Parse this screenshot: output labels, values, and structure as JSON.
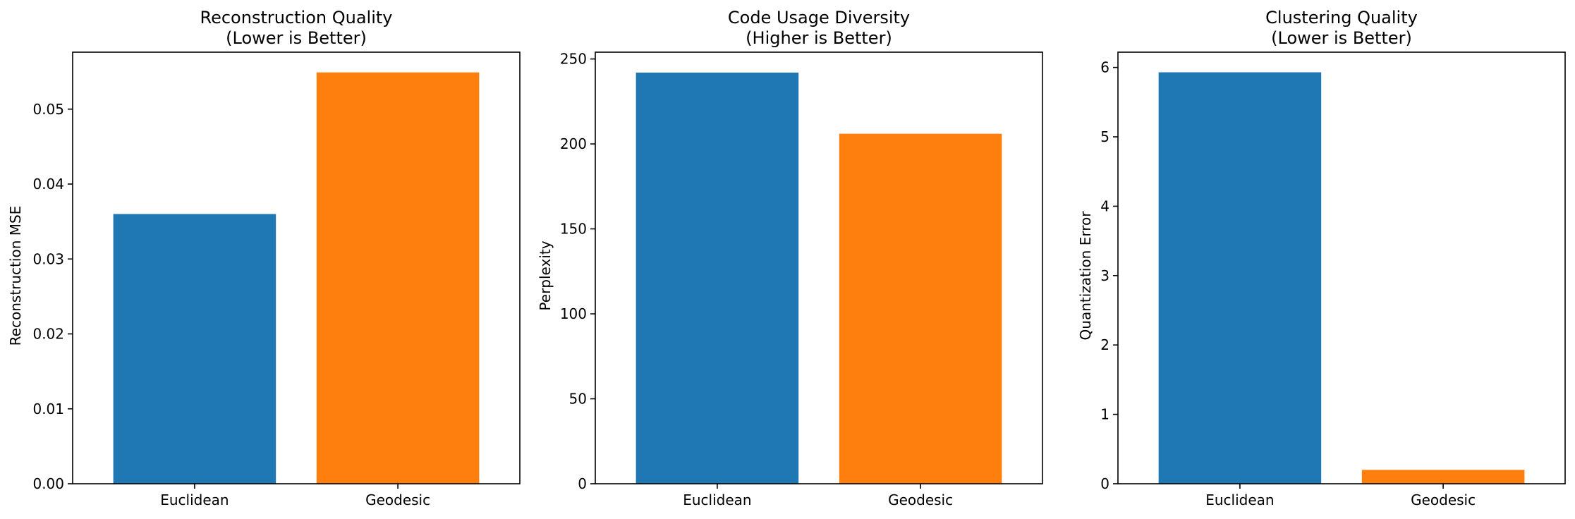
{
  "chart_data": [
    {
      "type": "bar",
      "title": "Reconstruction Quality",
      "subtitle": "(Lower is Better)",
      "xlabel": "",
      "ylabel": "Reconstruction MSE",
      "categories": [
        "Euclidean",
        "Geodesic"
      ],
      "values": [
        0.036,
        0.0549
      ],
      "colors": [
        "#1f77b4",
        "#ff7f0e"
      ],
      "ylim": [
        0,
        0.0576
      ],
      "yticks": [
        0,
        0.01,
        0.02,
        0.03,
        0.04,
        0.05
      ],
      "ytick_labels": [
        "0.00",
        "0.01",
        "0.02",
        "0.03",
        "0.04",
        "0.05"
      ],
      "grid": false
    },
    {
      "type": "bar",
      "title": "Code Usage Diversity",
      "subtitle": "(Higher is Better)",
      "xlabel": "",
      "ylabel": "Perplexity",
      "categories": [
        "Euclidean",
        "Geodesic"
      ],
      "values": [
        242,
        206
      ],
      "colors": [
        "#1f77b4",
        "#ff7f0e"
      ],
      "ylim": [
        0,
        254
      ],
      "yticks": [
        0,
        50,
        100,
        150,
        200,
        250
      ],
      "ytick_labels": [
        "0",
        "50",
        "100",
        "150",
        "200",
        "250"
      ],
      "grid": false
    },
    {
      "type": "bar",
      "title": "Clustering Quality",
      "subtitle": "(Lower is Better)",
      "xlabel": "",
      "ylabel": "Quantization Error",
      "categories": [
        "Euclidean",
        "Geodesic"
      ],
      "values": [
        5.93,
        0.2
      ],
      "colors": [
        "#1f77b4",
        "#ff7f0e"
      ],
      "ylim": [
        0,
        6.22
      ],
      "yticks": [
        0,
        1,
        2,
        3,
        4,
        5,
        6
      ],
      "ytick_labels": [
        "0",
        "1",
        "2",
        "3",
        "4",
        "5",
        "6"
      ],
      "grid": false
    }
  ]
}
